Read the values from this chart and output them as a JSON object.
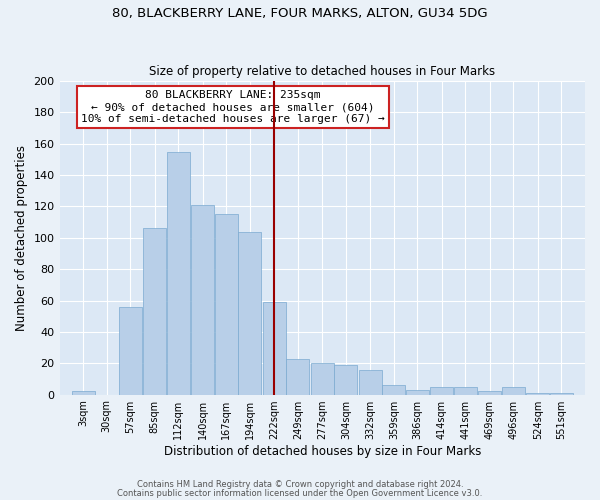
{
  "title1": "80, BLACKBERRY LANE, FOUR MARKS, ALTON, GU34 5DG",
  "title2": "Size of property relative to detached houses in Four Marks",
  "xlabel": "Distribution of detached houses by size in Four Marks",
  "ylabel": "Number of detached properties",
  "footer1": "Contains HM Land Registry data © Crown copyright and database right 2024.",
  "footer2": "Contains public sector information licensed under the Open Government Licence v3.0.",
  "annotation_title": "80 BLACKBERRY LANE: 235sqm",
  "annotation_line1": "← 90% of detached houses are smaller (604)",
  "annotation_line2": "10% of semi-detached houses are larger (67) →",
  "property_size": 235,
  "bar_categories": [
    "3sqm",
    "30sqm",
    "57sqm",
    "85sqm",
    "112sqm",
    "140sqm",
    "167sqm",
    "194sqm",
    "222sqm",
    "249sqm",
    "277sqm",
    "304sqm",
    "332sqm",
    "359sqm",
    "386sqm",
    "414sqm",
    "441sqm",
    "469sqm",
    "496sqm",
    "524sqm",
    "551sqm"
  ],
  "bar_left_edges": [
    3,
    30,
    57,
    85,
    112,
    140,
    167,
    194,
    222,
    249,
    277,
    304,
    332,
    359,
    386,
    414,
    441,
    469,
    496,
    524,
    551
  ],
  "bar_heights": [
    2,
    0,
    56,
    106,
    155,
    121,
    115,
    104,
    59,
    23,
    20,
    19,
    16,
    6,
    3,
    5,
    5,
    2,
    5,
    1,
    1
  ],
  "bar_color": "#b8cfe8",
  "bar_edge_color": "#7aaad0",
  "vline_x": 235,
  "vline_color": "#990000",
  "background_color": "#dce8f5",
  "plot_bg_color": "#dce8f5",
  "fig_bg_color": "#eaf1f8",
  "grid_color": "#ffffff",
  "annotation_box_color": "#ffffff",
  "annotation_border_color": "#cc2222",
  "ylim": [
    0,
    200
  ],
  "yticks": [
    0,
    20,
    40,
    60,
    80,
    100,
    120,
    140,
    160,
    180,
    200
  ]
}
